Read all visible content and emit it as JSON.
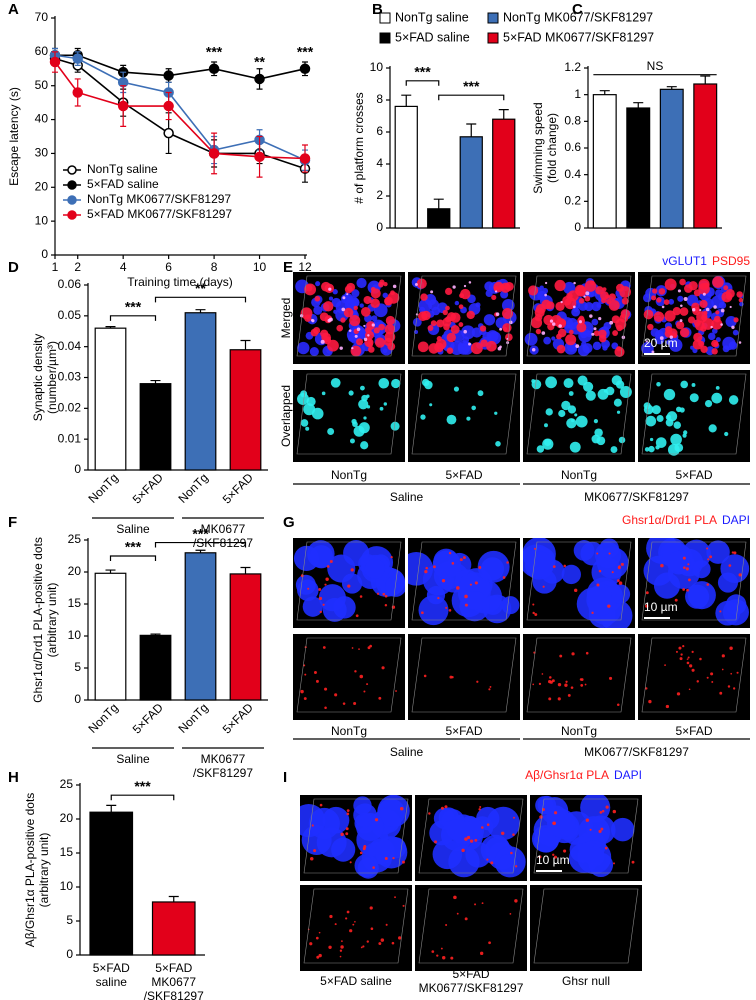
{
  "chart_data": [
    {
      "panel": "A",
      "type": "line",
      "y_label": "Escape latency (s)",
      "x_label": "Training time (days)",
      "x": [
        1,
        2,
        4,
        6,
        8,
        10,
        12
      ],
      "xlim": [
        1,
        12
      ],
      "xticks": [
        1,
        2,
        4,
        6,
        8,
        10,
        12
      ],
      "ylim": [
        0,
        70
      ],
      "yticks": [
        0,
        10,
        20,
        30,
        40,
        50,
        60,
        70
      ],
      "legend": "lower left",
      "series": [
        {
          "name": "NonTg saline",
          "color": "#000000",
          "fill": "#ffffff",
          "values": [
            58,
            56,
            45,
            36,
            30,
            30,
            25.5
          ],
          "errors": [
            2,
            2,
            4,
            6,
            4,
            3,
            4
          ]
        },
        {
          "name": "5×FAD saline",
          "color": "#000000",
          "fill": "#000000",
          "values": [
            59,
            59,
            54,
            53,
            55,
            52,
            55
          ],
          "errors": [
            2,
            2,
            2,
            2,
            2,
            3,
            2
          ]
        },
        {
          "name": "NonTg MK0677/SKF81297",
          "color": "#3d6fb6",
          "fill": "#3d6fb6",
          "values": [
            59,
            58,
            51,
            48,
            31,
            34,
            28
          ],
          "errors": [
            2,
            2,
            3,
            3,
            4,
            3,
            3
          ]
        },
        {
          "name": "5×FAD MK0677/SKF81297",
          "color": "#e2001a",
          "fill": "#e2001a",
          "values": [
            57,
            48,
            44,
            44,
            30,
            29,
            28.5
          ],
          "errors": [
            3,
            4,
            6,
            4,
            6,
            6,
            4
          ]
        }
      ],
      "annotations": [
        "***",
        "**",
        "***"
      ]
    },
    {
      "panel": "B",
      "type": "bar",
      "y_label": "# of platform crosses",
      "categories": [
        "NonTg saline",
        "5×FAD saline",
        "NonTg MK0677/SKF81297",
        "5×FAD MK0677/SKF81297"
      ],
      "colors": [
        "#ffffff",
        "#000000",
        "#3d6fb6",
        "#e2001a"
      ],
      "values": [
        7.6,
        1.2,
        5.7,
        6.8
      ],
      "errors": [
        0.7,
        0.6,
        0.8,
        0.6
      ],
      "ylim": [
        0,
        10
      ],
      "yticks": [
        0,
        2,
        4,
        6,
        8,
        10
      ],
      "legend": "top",
      "annotations": [
        "***",
        "***"
      ]
    },
    {
      "panel": "C",
      "type": "bar",
      "y_label": [
        "Swimming speed",
        "(fold change)"
      ],
      "categories": [
        null,
        null,
        null,
        null
      ],
      "colors": [
        "#ffffff",
        "#000000",
        "#3d6fb6",
        "#e2001a"
      ],
      "values": [
        1.0,
        0.9,
        1.04,
        1.08
      ],
      "errors": [
        0.03,
        0.04,
        0.02,
        0.06
      ],
      "ylim": [
        0,
        1.2
      ],
      "yticks": [
        0,
        0.2,
        0.4,
        0.6,
        0.8,
        1,
        1.2
      ],
      "annotations": [
        "NS"
      ]
    },
    {
      "panel": "D",
      "type": "bar",
      "y_label": [
        "Synaptic density",
        "(number/µm³)"
      ],
      "categories": [
        "NonTg",
        "5×FAD",
        "NonTg",
        "5×FAD"
      ],
      "groups": [
        [
          "Saline"
        ],
        [
          "MK0677",
          "/SKF81297"
        ]
      ],
      "colors": [
        "#ffffff",
        "#000000",
        "#3d6fb6",
        "#e2001a"
      ],
      "values": [
        0.046,
        0.028,
        0.051,
        0.039
      ],
      "errors": [
        0.0005,
        0.001,
        0.001,
        0.003
      ],
      "ylim": [
        0,
        0.06
      ],
      "yticks": [
        0,
        0.01,
        0.02,
        0.03,
        0.04,
        0.05,
        0.06
      ],
      "annotations": [
        "***",
        "**"
      ]
    },
    {
      "panel": "F",
      "type": "bar",
      "y_label": [
        "Ghsr1α/Drd1 PLA-positive dots",
        "(arbitrary unit)"
      ],
      "categories": [
        "NonTg",
        "5×FAD",
        "NonTg",
        "5×FAD"
      ],
      "groups": [
        [
          "Saline"
        ],
        [
          "MK0677",
          "/SKF81297"
        ]
      ],
      "colors": [
        "#ffffff",
        "#000000",
        "#3d6fb6",
        "#e2001a"
      ],
      "values": [
        19.8,
        10.1,
        23,
        19.7
      ],
      "errors": [
        0.5,
        0.2,
        0.4,
        1
      ],
      "ylim": [
        0,
        25
      ],
      "yticks": [
        0,
        5,
        10,
        15,
        20,
        25
      ],
      "annotations": [
        "***",
        "***"
      ]
    },
    {
      "panel": "H",
      "type": "bar",
      "y_label": [
        "Aβ/Ghsr1α PLA-positive dots",
        "(arbitrary unit)"
      ],
      "categories": [
        [
          "5×FAD",
          "saline"
        ],
        [
          "5×FAD",
          "MK0677",
          "/SKF81297"
        ]
      ],
      "colors": [
        "#000000",
        "#e2001a"
      ],
      "values": [
        21,
        7.8
      ],
      "errors": [
        1,
        0.8
      ],
      "ylim": [
        0,
        25
      ],
      "yticks": [
        0,
        5,
        10,
        15,
        20,
        25
      ],
      "annotations": [
        "***"
      ]
    }
  ],
  "image_panels": [
    {
      "panel": "E",
      "legend": [
        {
          "text": "vGLUT1",
          "color": "#1a1aff"
        },
        {
          "text": "PSD95",
          "color": "#ff1a1a"
        }
      ],
      "rows": [
        "Merged",
        "Overlapped"
      ],
      "scale_bar": "20 µm",
      "columns": [
        "NonTg",
        "5×FAD",
        "NonTg",
        "5×FAD"
      ],
      "groups": [
        "Saline",
        "MK0677/SKF81297"
      ]
    },
    {
      "panel": "G",
      "legend": [
        {
          "text": "Ghsr1α/Drd1 PLA",
          "color": "#ff1a1a"
        },
        {
          "text": "DAPI",
          "color": "#1a1aff"
        }
      ],
      "scale_bar": "10 µm",
      "columns": [
        "NonTg",
        "5×FAD",
        "NonTg",
        "5×FAD"
      ],
      "groups": [
        "Saline",
        "MK0677/SKF81297"
      ]
    },
    {
      "panel": "I",
      "legend": [
        {
          "text": "Aβ/Ghsr1α PLA",
          "color": "#ff1a1a"
        },
        {
          "text": "DAPI",
          "color": "#1a1aff"
        }
      ],
      "scale_bar": "10 µm",
      "columns": [
        "5×FAD saline",
        [
          "5×FAD",
          "MK0677/SKF81297"
        ],
        "Ghsr null"
      ]
    }
  ]
}
